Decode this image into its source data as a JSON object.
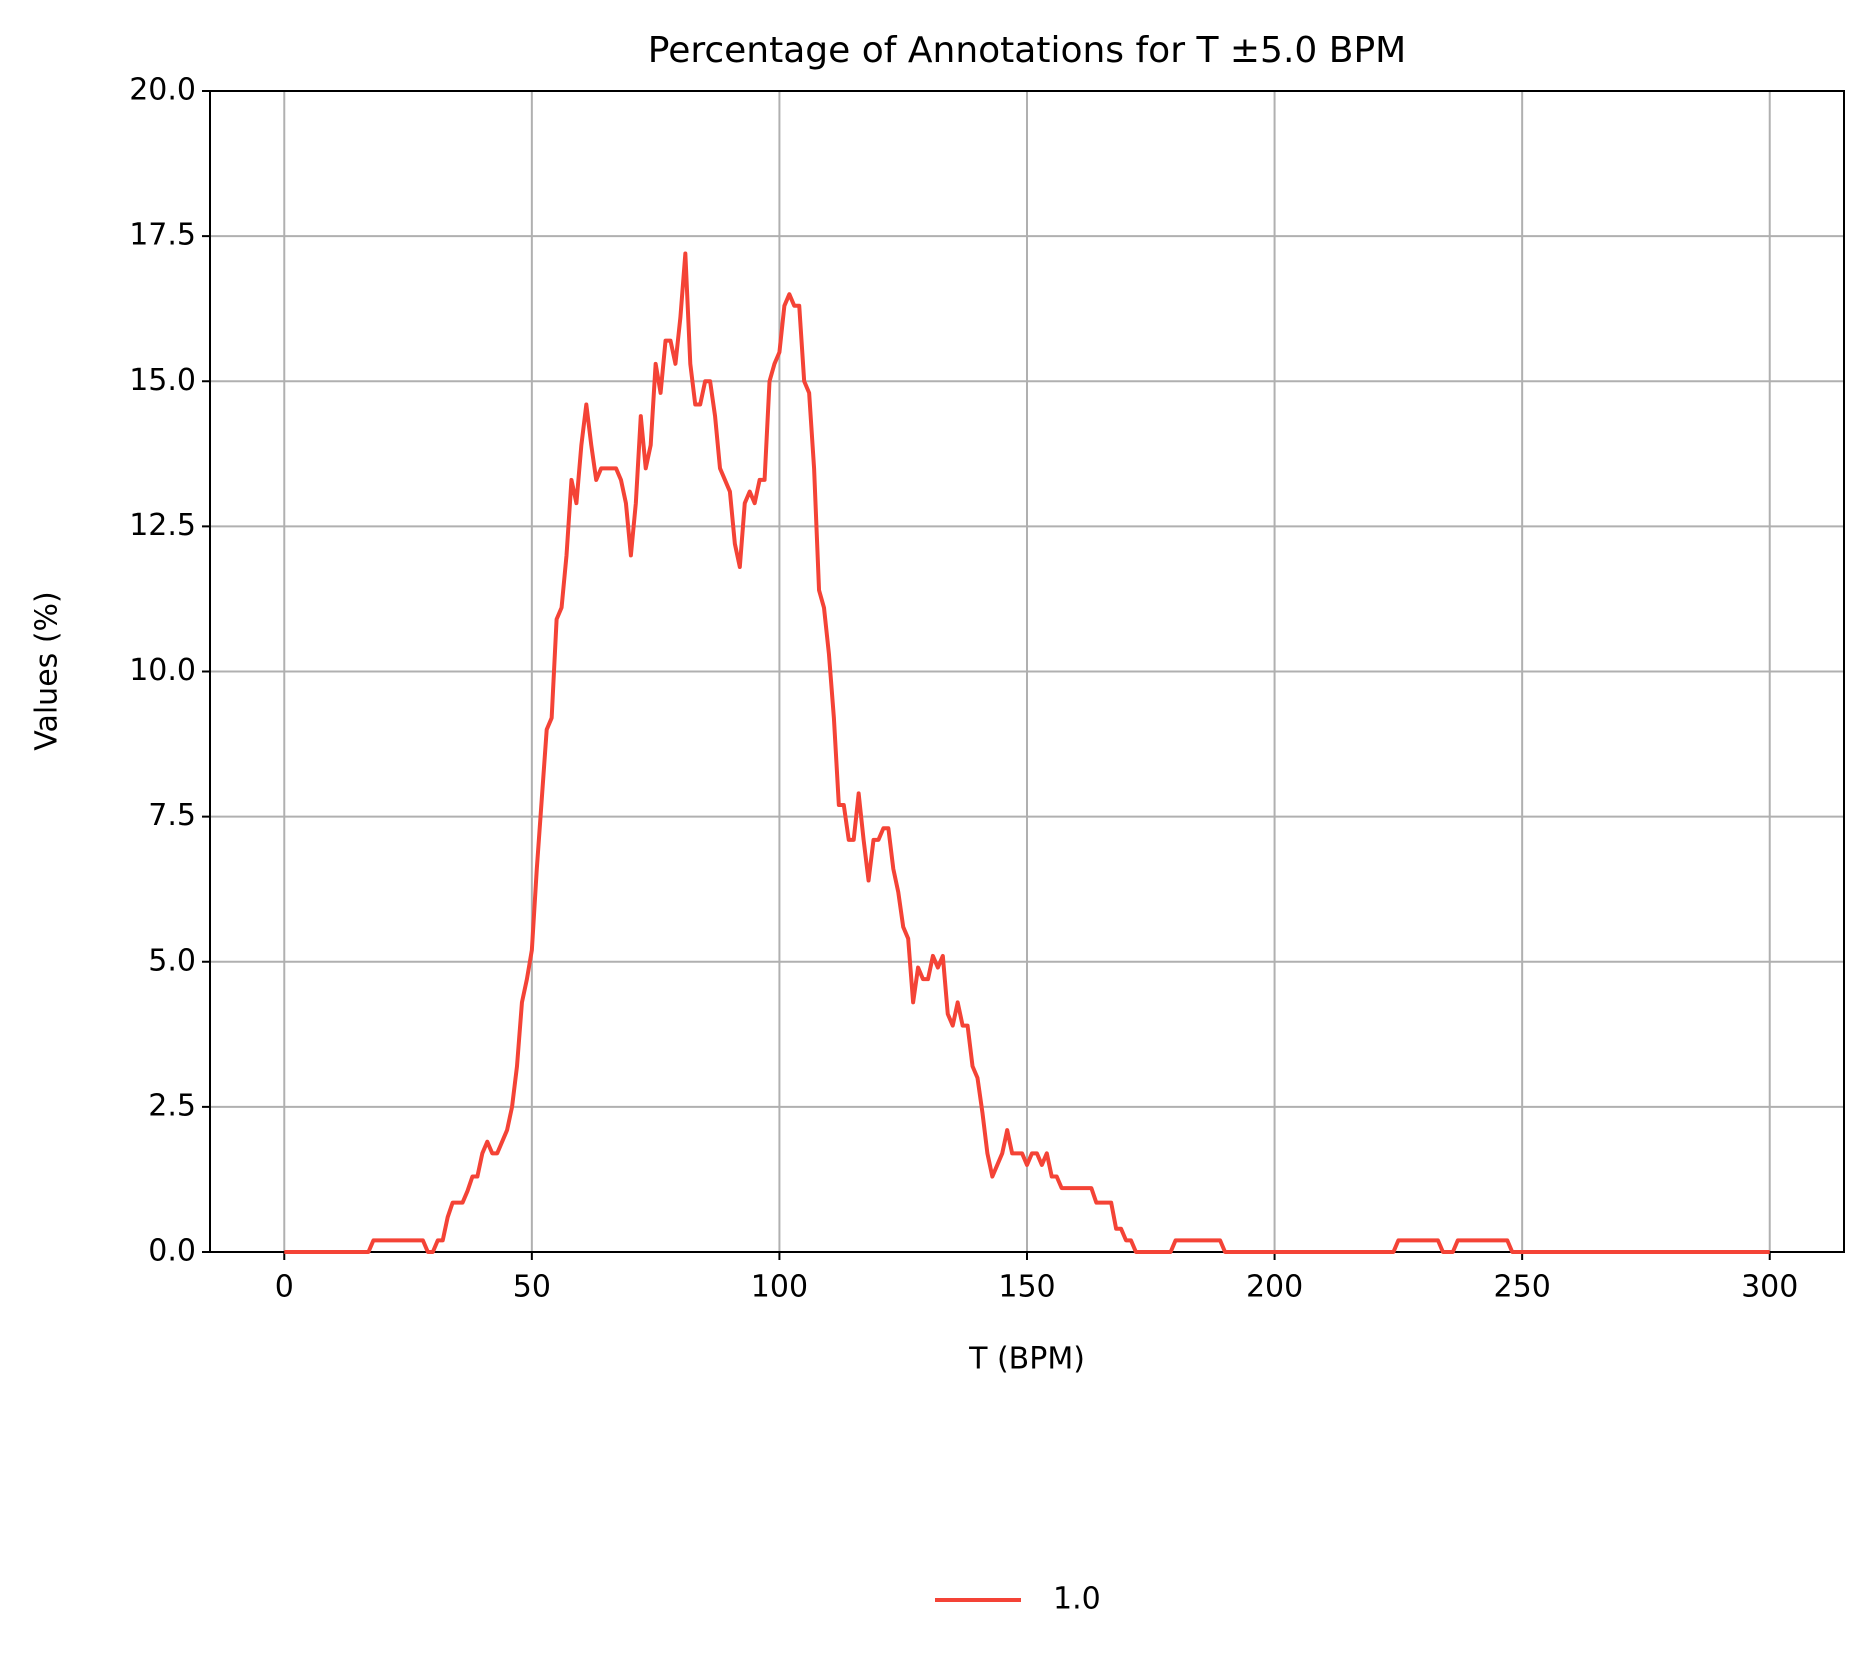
{
  "chart_data": {
    "type": "line",
    "title": "Percentage of Annotations for T ±5.0 BPM",
    "xlabel": "T (BPM)",
    "ylabel": "Values (%)",
    "x": [
      0,
      17,
      18,
      28,
      29,
      30,
      31,
      32,
      33,
      34,
      35,
      36,
      37,
      38,
      39,
      40,
      41,
      42,
      43,
      44,
      45,
      46,
      47,
      48,
      49,
      50,
      51,
      52,
      53,
      54,
      55,
      56,
      57,
      58,
      59,
      60,
      61,
      62,
      63,
      64,
      65,
      66,
      67,
      68,
      69,
      70,
      71,
      72,
      73,
      74,
      75,
      76,
      77,
      78,
      79,
      80,
      81,
      82,
      83,
      84,
      85,
      86,
      87,
      88,
      89,
      90,
      91,
      92,
      93,
      94,
      95,
      96,
      97,
      98,
      99,
      100,
      101,
      102,
      103,
      104,
      105,
      106,
      107,
      108,
      109,
      110,
      111,
      112,
      113,
      114,
      115,
      116,
      117,
      118,
      119,
      120,
      121,
      122,
      123,
      124,
      125,
      126,
      127,
      128,
      129,
      130,
      131,
      132,
      133,
      134,
      135,
      136,
      137,
      138,
      139,
      140,
      141,
      142,
      143,
      144,
      145,
      146,
      147,
      148,
      149,
      150,
      151,
      152,
      153,
      154,
      155,
      156,
      157,
      163,
      164,
      167,
      168,
      169,
      170,
      171,
      172,
      179,
      180,
      189,
      190,
      224,
      225,
      233,
      234,
      236,
      237,
      247,
      248,
      300
    ],
    "series": [
      {
        "name": "1.0",
        "color": "#f44336",
        "values": [
          0,
          0,
          0.2,
          0.2,
          0,
          0,
          0.2,
          0.2,
          0.6,
          0.85,
          0.85,
          0.85,
          1.05,
          1.3,
          1.3,
          1.7,
          1.9,
          1.7,
          1.7,
          1.9,
          2.1,
          2.5,
          3.2,
          4.3,
          4.7,
          5.2,
          6.6,
          7.8,
          9.0,
          9.2,
          10.9,
          11.1,
          12.0,
          13.3,
          12.9,
          13.9,
          14.6,
          13.9,
          13.3,
          13.5,
          13.5,
          13.5,
          13.5,
          13.3,
          12.9,
          12.0,
          12.9,
          14.4,
          13.5,
          13.9,
          15.3,
          14.8,
          15.7,
          15.7,
          15.3,
          16.1,
          17.2,
          15.3,
          14.6,
          14.6,
          15.0,
          15.0,
          14.4,
          13.5,
          13.3,
          13.1,
          12.2,
          11.8,
          12.9,
          13.1,
          12.9,
          13.3,
          13.3,
          15.0,
          15.3,
          15.5,
          16.3,
          16.5,
          16.3,
          16.3,
          15.0,
          14.8,
          13.5,
          11.4,
          11.1,
          10.3,
          9.2,
          7.7,
          7.7,
          7.1,
          7.1,
          7.9,
          7.1,
          6.4,
          7.1,
          7.1,
          7.3,
          7.3,
          6.6,
          6.2,
          5.6,
          5.4,
          4.3,
          4.9,
          4.7,
          4.7,
          5.1,
          4.9,
          5.1,
          4.1,
          3.9,
          4.3,
          3.9,
          3.9,
          3.2,
          3.0,
          2.4,
          1.7,
          1.3,
          1.5,
          1.7,
          2.1,
          1.7,
          1.7,
          1.7,
          1.5,
          1.7,
          1.7,
          1.5,
          1.7,
          1.3,
          1.3,
          1.1,
          1.1,
          0.85,
          0.85,
          0.4,
          0.4,
          0.2,
          0.2,
          0,
          0,
          0.2,
          0.2,
          0,
          0,
          0.2,
          0.2,
          0,
          0,
          0.2,
          0.2,
          0,
          0
        ]
      }
    ],
    "xlim": [
      -15,
      315
    ],
    "ylim": [
      0,
      20
    ],
    "xticks": [
      0,
      50,
      100,
      150,
      200,
      250,
      300
    ],
    "yticks": [
      {
        "value": 0,
        "label": "0.0"
      },
      2.5,
      {
        "value": 5,
        "label": "5.0"
      },
      7.5,
      {
        "value": 10,
        "label": "10.0"
      },
      12.5,
      {
        "value": 15,
        "label": "15.0"
      },
      17.5,
      {
        "value": 20,
        "label": "20.0"
      }
    ],
    "grid": true,
    "legend": "lower center"
  }
}
